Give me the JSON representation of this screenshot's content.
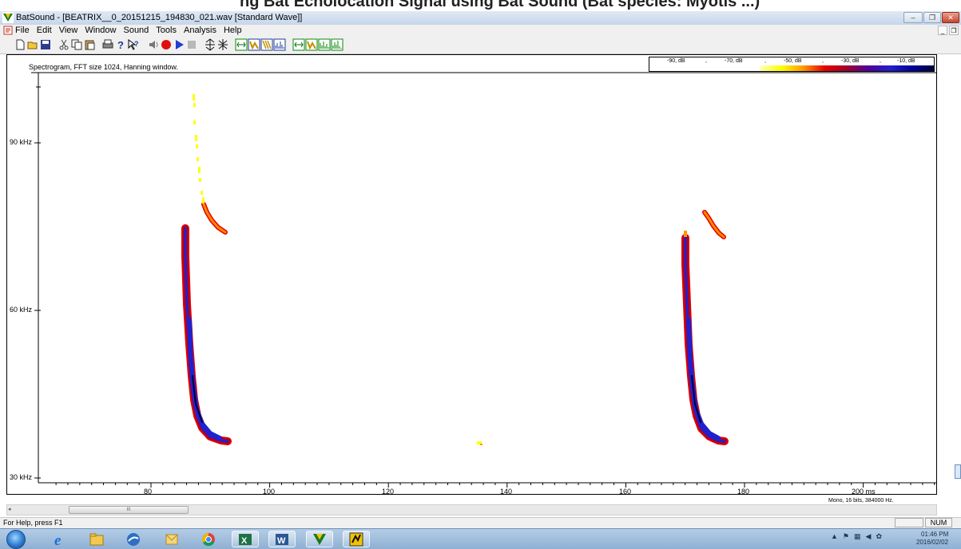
{
  "stamp_header": "ng Bat Echolocation Signal using Bat Sound (Bat species: Myotis ...)",
  "window": {
    "title": "BatSound - [BEATRIX__0_20151215_194830_021.wav [Standard Wave]]",
    "minimize_glyph": "–",
    "restore_glyph": "❐",
    "close_glyph": "✕"
  },
  "menu": {
    "items": [
      "File",
      "Edit",
      "View",
      "Window",
      "Sound",
      "Tools",
      "Analysis",
      "Help"
    ],
    "mdi_min_glyph": "_",
    "mdi_restore_glyph": "❐"
  },
  "toolbar": {
    "icons": [
      "new-icon",
      "open-icon",
      "save-icon",
      "cut-icon",
      "copy-icon",
      "paste-icon",
      "print-icon",
      "help-icon",
      "context-help-icon",
      "speaker-icon",
      "record-icon",
      "play-icon",
      "stop-icon",
      "zoom-in-icon",
      "zoom-out-icon",
      "spectrogram-icon",
      "power-spectrum-icon",
      "pitch-icon",
      "waveform-icon",
      "spectrogram-2-icon",
      "power-spectrum-2-icon",
      "wave-3d-icon",
      "spectrum-3d-icon",
      "pitch-2-icon"
    ]
  },
  "spectrogram": {
    "title": "Spectrogram, FFT size 1024, Hanning window.",
    "format_info": "Mono, 16 bits, 384000 Hz.",
    "scale_labels": [
      "-90, dB",
      "-70, dB",
      "-50, dB",
      "-30, dB",
      "-10, dB"
    ],
    "y_ticks": [
      "90 kHz",
      "60 kHz",
      "30 kHz"
    ],
    "x_ticks": [
      "80",
      "100",
      "120",
      "140",
      "160",
      "180",
      "200 ms"
    ],
    "colors": {
      "low": "#ffff00",
      "mid": "#e60000",
      "high": "#2020d0",
      "peak": "#000040"
    }
  },
  "scrollbar": {
    "thumb_grip": "III",
    "left_arrow": "◂"
  },
  "status": {
    "text": "For Help, press F1",
    "num": "NUM"
  },
  "taskbar": {
    "apps": [
      "internet-explorer-icon",
      "file-explorer-icon",
      "google-earth-icon",
      "outlook-icon",
      "chrome-icon",
      "excel-icon",
      "word-icon",
      "batsound-icon",
      "sound-recorder-icon"
    ],
    "clock_time": "01:46 PM",
    "clock_date": "2016/02/02"
  }
}
